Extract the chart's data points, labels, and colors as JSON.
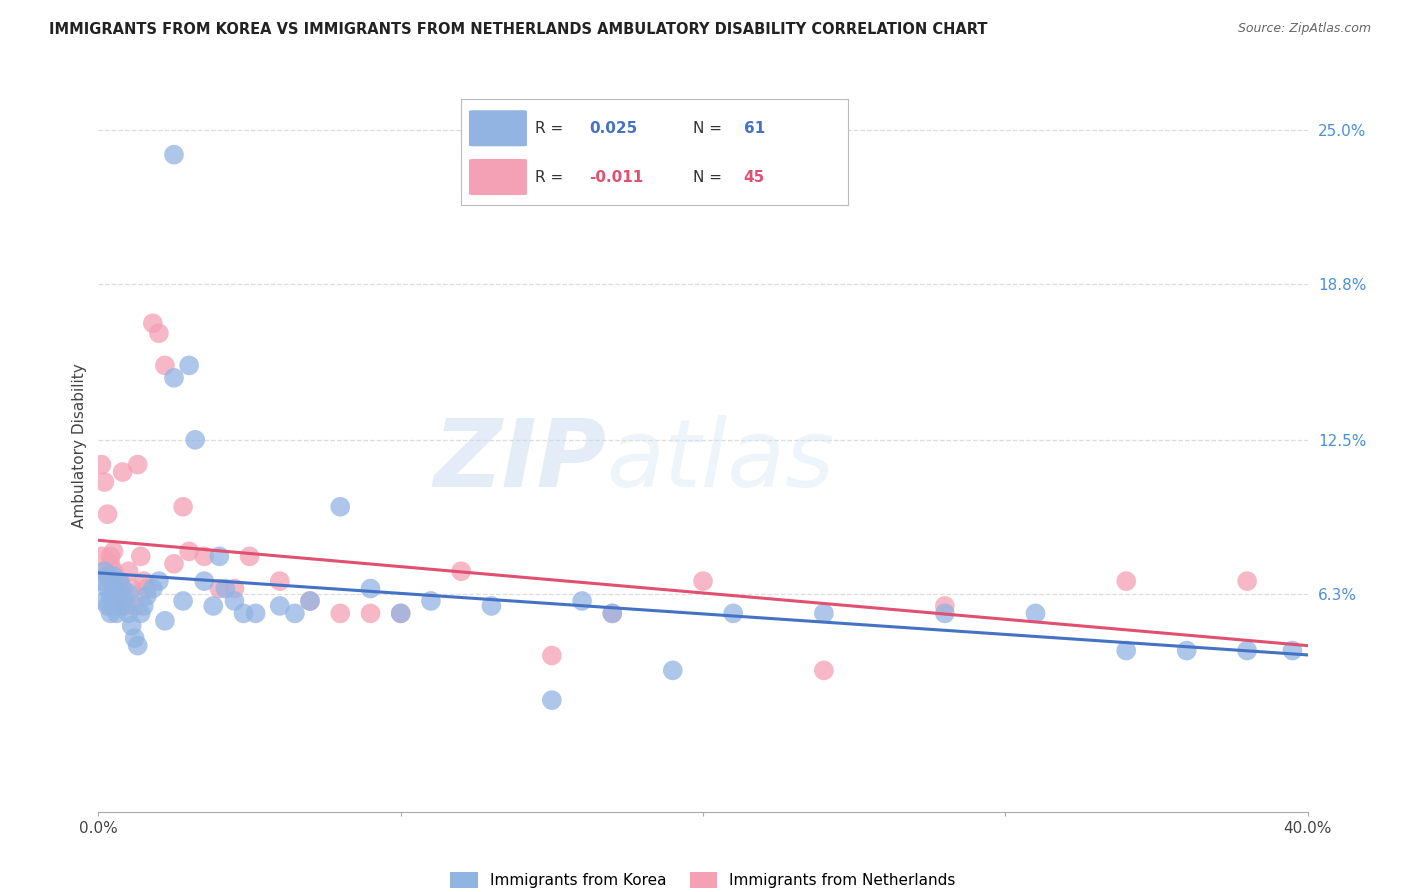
{
  "title": "IMMIGRANTS FROM KOREA VS IMMIGRANTS FROM NETHERLANDS AMBULATORY DISABILITY CORRELATION CHART",
  "source": "Source: ZipAtlas.com",
  "ylabel": "Ambulatory Disability",
  "ytick_labels": [
    "25.0%",
    "18.8%",
    "12.5%",
    "6.3%"
  ],
  "ytick_values": [
    0.25,
    0.188,
    0.125,
    0.063
  ],
  "xlim": [
    0.0,
    0.4
  ],
  "ylim": [
    -0.025,
    0.27
  ],
  "korea_color": "#92b4e3",
  "netherlands_color": "#f4a0b5",
  "korea_R": 0.025,
  "korea_N": 61,
  "netherlands_R": -0.011,
  "netherlands_N": 45,
  "korea_scatter_x": [
    0.001,
    0.002,
    0.002,
    0.003,
    0.003,
    0.003,
    0.004,
    0.004,
    0.005,
    0.005,
    0.005,
    0.006,
    0.006,
    0.007,
    0.007,
    0.008,
    0.008,
    0.009,
    0.01,
    0.01,
    0.011,
    0.012,
    0.013,
    0.014,
    0.015,
    0.016,
    0.018,
    0.02,
    0.022,
    0.025,
    0.028,
    0.03,
    0.032,
    0.035,
    0.038,
    0.04,
    0.042,
    0.045,
    0.048,
    0.052,
    0.06,
    0.065,
    0.07,
    0.08,
    0.09,
    0.1,
    0.11,
    0.13,
    0.15,
    0.16,
    0.17,
    0.19,
    0.21,
    0.24,
    0.28,
    0.31,
    0.34,
    0.36,
    0.38,
    0.395,
    0.025
  ],
  "korea_scatter_y": [
    0.068,
    0.072,
    0.06,
    0.058,
    0.065,
    0.07,
    0.055,
    0.062,
    0.058,
    0.065,
    0.07,
    0.06,
    0.055,
    0.063,
    0.068,
    0.058,
    0.065,
    0.06,
    0.055,
    0.063,
    0.05,
    0.045,
    0.042,
    0.055,
    0.058,
    0.062,
    0.065,
    0.068,
    0.052,
    0.24,
    0.06,
    0.155,
    0.125,
    0.068,
    0.058,
    0.078,
    0.065,
    0.06,
    0.055,
    0.055,
    0.058,
    0.055,
    0.06,
    0.098,
    0.065,
    0.055,
    0.06,
    0.058,
    0.02,
    0.06,
    0.055,
    0.032,
    0.055,
    0.055,
    0.055,
    0.055,
    0.04,
    0.04,
    0.04,
    0.04,
    0.15
  ],
  "netherlands_scatter_x": [
    0.001,
    0.001,
    0.002,
    0.002,
    0.003,
    0.003,
    0.004,
    0.004,
    0.005,
    0.005,
    0.006,
    0.006,
    0.007,
    0.008,
    0.009,
    0.01,
    0.011,
    0.012,
    0.013,
    0.014,
    0.015,
    0.016,
    0.018,
    0.02,
    0.022,
    0.025,
    0.028,
    0.03,
    0.035,
    0.04,
    0.045,
    0.05,
    0.06,
    0.07,
    0.08,
    0.09,
    0.1,
    0.12,
    0.15,
    0.17,
    0.2,
    0.24,
    0.28,
    0.34,
    0.38
  ],
  "netherlands_scatter_y": [
    0.115,
    0.078,
    0.108,
    0.072,
    0.095,
    0.068,
    0.075,
    0.078,
    0.072,
    0.08,
    0.065,
    0.058,
    0.068,
    0.112,
    0.058,
    0.072,
    0.065,
    0.058,
    0.115,
    0.078,
    0.068,
    0.065,
    0.172,
    0.168,
    0.155,
    0.075,
    0.098,
    0.08,
    0.078,
    0.065,
    0.065,
    0.078,
    0.068,
    0.06,
    0.055,
    0.055,
    0.055,
    0.072,
    0.038,
    0.055,
    0.068,
    0.032,
    0.058,
    0.068,
    0.068
  ],
  "watermark_zip": "ZIP",
  "watermark_atlas": "atlas",
  "background_color": "#ffffff",
  "grid_color": "#dddddd",
  "axis_color": "#cccccc",
  "korea_line_color": "#4472c4",
  "netherlands_line_color": "#e05070",
  "title_color": "#222222",
  "right_label_color": "#4a90d9",
  "legend_korea_color": "#92b4e3",
  "legend_netherlands_color": "#f4a0b5"
}
